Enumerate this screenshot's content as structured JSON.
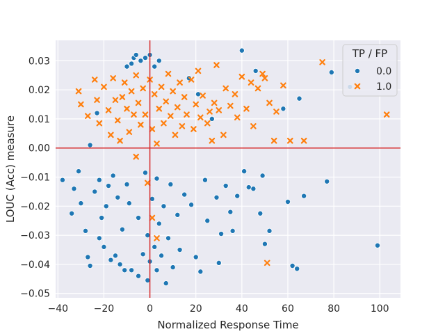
{
  "chart_data": {
    "type": "scatter",
    "title": "",
    "xlabel": "Normalized Response Time",
    "ylabel": "LOUC (Acc) measure",
    "xlim": [
      -41,
      109
    ],
    "ylim": [
      -0.0515,
      0.037
    ],
    "xticks": [
      -40,
      -20,
      0,
      20,
      40,
      60,
      80,
      100
    ],
    "xtick_labels": [
      "−40",
      "−20",
      "0",
      "20",
      "40",
      "60",
      "80",
      "100"
    ],
    "yticks": [
      -0.05,
      -0.04,
      -0.03,
      -0.02,
      -0.01,
      0.0,
      0.01,
      0.02,
      0.03
    ],
    "ytick_labels": [
      "−0.05",
      "−0.04",
      "−0.03",
      "−0.02",
      "−0.01",
      "0.00",
      "0.01",
      "0.02",
      "0.03"
    ],
    "grid": true,
    "reference_lines": {
      "vertical_x": 0,
      "horizontal_y": 0,
      "color": "#d62728"
    },
    "legend": {
      "title": "TP / FP",
      "placement": "top-right",
      "entries": [
        {
          "label": "0.0",
          "marker": "circle",
          "color": "#1f77b4"
        },
        {
          "label": "1.0",
          "marker": "x",
          "color": "#ff7f0e"
        }
      ]
    },
    "series": [
      {
        "name": "0.0",
        "marker": "circle",
        "color": "#1f77b4",
        "points": [
          [
            -38,
            -0.011
          ],
          [
            -34,
            -0.0225
          ],
          [
            -33,
            -0.014
          ],
          [
            -31,
            -0.008
          ],
          [
            -30,
            -0.019
          ],
          [
            -28,
            -0.0285
          ],
          [
            -27,
            -0.0375
          ],
          [
            -26,
            -0.0405
          ],
          [
            -26,
            0.001
          ],
          [
            -24,
            -0.015
          ],
          [
            -23,
            0.012
          ],
          [
            -22,
            -0.031
          ],
          [
            -22,
            -0.011
          ],
          [
            -21,
            -0.024
          ],
          [
            -20,
            -0.034
          ],
          [
            -19,
            -0.02
          ],
          [
            -18,
            -0.013
          ],
          [
            -17,
            -0.0385
          ],
          [
            -16,
            -0.0095
          ],
          [
            -15,
            -0.037
          ],
          [
            -14,
            -0.017
          ],
          [
            -13,
            -0.04
          ],
          [
            -12,
            -0.028
          ],
          [
            -11,
            -0.042
          ],
          [
            -10,
            0.028
          ],
          [
            -10,
            -0.0125
          ],
          [
            -9,
            -0.019
          ],
          [
            -8,
            0.029
          ],
          [
            -8,
            -0.042
          ],
          [
            -7,
            0.031
          ],
          [
            -6,
            0.032
          ],
          [
            -5,
            -0.044
          ],
          [
            -5,
            -0.024
          ],
          [
            -4,
            0.03
          ],
          [
            -3,
            -0.0365
          ],
          [
            -2,
            0.031
          ],
          [
            -2,
            -0.0085
          ],
          [
            -1,
            -0.0455
          ],
          [
            -1,
            -0.03
          ],
          [
            0,
            0.032
          ],
          [
            0,
            -0.039
          ],
          [
            1,
            -0.0175
          ],
          [
            2,
            0.028
          ],
          [
            2,
            -0.034
          ],
          [
            3,
            -0.042
          ],
          [
            3,
            -0.0105
          ],
          [
            4,
            0.03
          ],
          [
            4,
            -0.026
          ],
          [
            5,
            -0.037
          ],
          [
            6,
            -0.02
          ],
          [
            7,
            -0.0465
          ],
          [
            8,
            -0.031
          ],
          [
            9,
            -0.0125
          ],
          [
            10,
            -0.041
          ],
          [
            12,
            -0.023
          ],
          [
            13,
            -0.035
          ],
          [
            15,
            -0.016
          ],
          [
            17,
            0.024
          ],
          [
            18,
            -0.0195
          ],
          [
            20,
            -0.0375
          ],
          [
            21,
            0.0185
          ],
          [
            22,
            -0.0425
          ],
          [
            24,
            -0.011
          ],
          [
            25,
            -0.025
          ],
          [
            27,
            0.01
          ],
          [
            29,
            -0.017
          ],
          [
            30,
            -0.0395
          ],
          [
            31,
            -0.0295
          ],
          [
            33,
            -0.013
          ],
          [
            35,
            -0.022
          ],
          [
            36,
            -0.0285
          ],
          [
            38,
            -0.0165
          ],
          [
            40,
            0.0335
          ],
          [
            41,
            -0.008
          ],
          [
            43,
            -0.0135
          ],
          [
            45,
            -0.014
          ],
          [
            46,
            0.0265
          ],
          [
            48,
            -0.0225
          ],
          [
            49,
            -0.0095
          ],
          [
            50,
            -0.033
          ],
          [
            52,
            -0.0285
          ],
          [
            58,
            0.0135
          ],
          [
            60,
            -0.0185
          ],
          [
            62,
            -0.0405
          ],
          [
            64,
            -0.0415
          ],
          [
            65,
            0.017
          ],
          [
            67,
            -0.0165
          ],
          [
            77,
            -0.0115
          ],
          [
            79,
            0.026
          ],
          [
            87,
            0.021
          ],
          [
            99,
            -0.0335
          ]
        ]
      },
      {
        "name": "1.0",
        "marker": "x",
        "color": "#ff7f0e",
        "points": [
          [
            -31,
            0.0195
          ],
          [
            -30,
            0.015
          ],
          [
            -27,
            0.011
          ],
          [
            -24,
            0.0235
          ],
          [
            -23,
            0.0165
          ],
          [
            -22,
            0.0085
          ],
          [
            -20,
            0.021
          ],
          [
            -18,
            0.013
          ],
          [
            -17,
            0.0045
          ],
          [
            -16,
            0.024
          ],
          [
            -15,
            0.0165
          ],
          [
            -14,
            0.0095
          ],
          [
            -13,
            0.0025
          ],
          [
            -12,
            0.0175
          ],
          [
            -11,
            0.0225
          ],
          [
            -10,
            0.0135
          ],
          [
            -9,
            0.0055
          ],
          [
            -8,
            0.0195
          ],
          [
            -7,
            0.0115
          ],
          [
            -6,
            0.025
          ],
          [
            -6,
            -0.003
          ],
          [
            -5,
            0.0155
          ],
          [
            -4,
            0.008
          ],
          [
            -3,
            0.0205
          ],
          [
            -2,
            0.0115
          ],
          [
            -1,
            -0.012
          ],
          [
            0,
            0.0235
          ],
          [
            1,
            0.0065
          ],
          [
            1,
            -0.024
          ],
          [
            2,
            0.0185
          ],
          [
            3,
            0.0015
          ],
          [
            3,
            -0.031
          ],
          [
            4,
            0.0135
          ],
          [
            5,
            0.021
          ],
          [
            6,
            0.0085
          ],
          [
            7,
            0.016
          ],
          [
            8,
            0.0255
          ],
          [
            9,
            0.011
          ],
          [
            10,
            0.0195
          ],
          [
            11,
            0.0045
          ],
          [
            12,
            0.014
          ],
          [
            13,
            0.0225
          ],
          [
            14,
            0.0075
          ],
          [
            15,
            0.0175
          ],
          [
            16,
            0.0115
          ],
          [
            18,
            0.0235
          ],
          [
            19,
            0.0065
          ],
          [
            20,
            0.015
          ],
          [
            21,
            0.0265
          ],
          [
            22,
            0.0105
          ],
          [
            23,
            0.018
          ],
          [
            25,
            0.0085
          ],
          [
            26,
            0.0125
          ],
          [
            27,
            0.0025
          ],
          [
            28,
            0.0155
          ],
          [
            29,
            0.0285
          ],
          [
            30,
            0.013
          ],
          [
            32,
            0.0045
          ],
          [
            33,
            0.0205
          ],
          [
            35,
            0.0145
          ],
          [
            37,
            0.0185
          ],
          [
            38,
            0.0105
          ],
          [
            40,
            0.0245
          ],
          [
            42,
            0.0135
          ],
          [
            44,
            0.0225
          ],
          [
            45,
            0.0075
          ],
          [
            47,
            0.0205
          ],
          [
            49,
            0.0255
          ],
          [
            50,
            0.024
          ],
          [
            51,
            -0.0395
          ],
          [
            52,
            0.0155
          ],
          [
            54,
            0.0025
          ],
          [
            55,
            0.0125
          ],
          [
            58,
            0.0215
          ],
          [
            61,
            0.0025
          ],
          [
            67,
            0.0025
          ],
          [
            75,
            0.0295
          ],
          [
            103,
            0.0115
          ]
        ]
      }
    ]
  }
}
